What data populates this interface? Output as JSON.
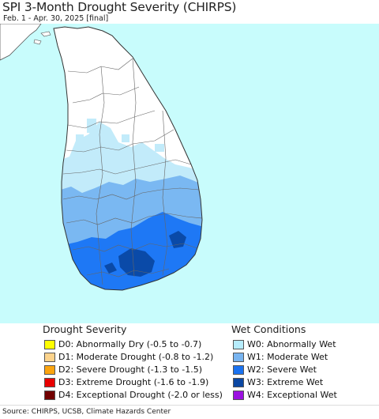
{
  "map": {
    "title": "SPI 3-Month Drought Severity (CHIRPS)",
    "period": "Feb. 1 - Apr. 30, 2025 [final]",
    "source": "Source: CHIRPS, UCSB, Climate Hazards Center",
    "colors": {
      "ocean": "#c8fcfc",
      "land_neutral": "#ffffff",
      "W0": "#c2ebfa",
      "W1": "#7ab8f2",
      "W2": "#1e78f5",
      "W3": "#0a4aa8",
      "boundary": "#555555"
    }
  },
  "legend": {
    "drought": {
      "title": "Drought Severity",
      "items": [
        {
          "code": "D0",
          "label": "D0: Abnormally Dry (-0.5 to -0.7)",
          "color": "#ffff00"
        },
        {
          "code": "D1",
          "label": "D1: Moderate Drought (-0.8 to -1.2)",
          "color": "#fcd38c"
        },
        {
          "code": "D2",
          "label": "D2: Severe Drought (-1.3 to -1.5)",
          "color": "#fba40f"
        },
        {
          "code": "D3",
          "label": "D3: Extreme Drought (-1.6 to -1.9)",
          "color": "#e80000"
        },
        {
          "code": "D4",
          "label": "D4: Exceptional Drought (-2.0 or less)",
          "color": "#720000"
        }
      ]
    },
    "wet": {
      "title": "Wet Conditions",
      "items": [
        {
          "code": "W0",
          "label": "W0: Abnormally Wet",
          "color": "#b6ecfc"
        },
        {
          "code": "W1",
          "label": "W1: Moderate Wet",
          "color": "#78b4f0"
        },
        {
          "code": "W2",
          "label": "W2: Severe Wet",
          "color": "#1a72f0"
        },
        {
          "code": "W3",
          "label": "W3: Extreme Wet",
          "color": "#0b47a2"
        },
        {
          "code": "W4",
          "label": "W4: Exceptional Wet",
          "color": "#9b10e0"
        }
      ]
    }
  }
}
